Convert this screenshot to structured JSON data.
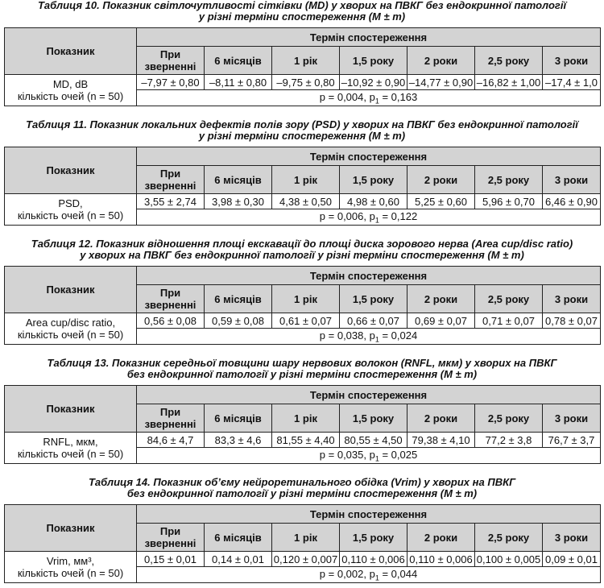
{
  "header": {
    "indicator_label": "Показник",
    "period_label": "Термін спостереження",
    "periods": [
      "При зверненні",
      "6 місяців",
      "1 рік",
      "1,5 року",
      "2 роки",
      "2,5 року",
      "3 роки"
    ]
  },
  "tables": [
    {
      "title_line1": "Таблиця 10. Показник світлочутливості сітківки (MD) у хворих на ПВКГ без ендокринної патології",
      "title_line2": "у різні терміни спостереження (M ± m)",
      "label_line1": "MD, dB",
      "label_line2": "кількість очей (n = 50)",
      "values": [
        "–7,97 ± 0,80",
        "–8,11 ± 0,80",
        "–9,75 ± 0,80",
        "–10,92 ± 0,90",
        "–14,77 ± 0,90",
        "–16,82 ± 1,00",
        "–17,4 ± 1,0"
      ],
      "p_main": "p = 0,004, p",
      "p_sub": "1",
      "p_tail": " = 0,163"
    },
    {
      "title_line1": "Таблиця 11. Показник локальних дефектів полів зору (PSD) у хворих на ПВКГ без ендокринної патології",
      "title_line2": "у різні терміни спостереження (M ± m)",
      "label_line1": "PSD,",
      "label_line2": "кількість очей (n = 50)",
      "values": [
        "3,55 ± 2,74",
        "3,98 ± 0,30",
        "4,38 ± 0,50",
        "4,98 ± 0,60",
        "5,25 ± 0,60",
        "5,96 ± 0,70",
        "6,46 ± 0,90"
      ],
      "p_main": "p = 0,006, p",
      "p_sub": "1",
      "p_tail": " = 0,122"
    },
    {
      "title_line1": "Таблиця 12. Показник відношення площі екскавації до площі диска зорового нерва (Area cup/disc ratio)",
      "title_line2": "у хворих на ПВКГ без ендокринної патології у різні терміни спостереження (M ± m)",
      "label_line1": "Area cup/disc ratio,",
      "label_line2": "кількість очей (n = 50)",
      "values": [
        "0,56 ± 0,08",
        "0,59 ± 0,08",
        "0,61 ± 0,07",
        "0,66 ± 0,07",
        "0,69 ± 0,07",
        "0,71 ± 0,07",
        "0,78 ± 0,07"
      ],
      "p_main": "p = 0,038, p",
      "p_sub": "1",
      "p_tail": " = 0,024"
    },
    {
      "title_line1": "Таблиця 13. Показник середньої товщини шару нервових волокон (RNFL, мкм) у хворих на ПВКГ",
      "title_line2": "без ендокринної патології у різні терміни спостереження (M ± m)",
      "label_line1": "RNFL, мкм,",
      "label_line2": "кількість очей (n = 50)",
      "values": [
        "84,6 ± 4,7",
        "83,3 ± 4,6",
        "81,55 ± 4,40",
        "80,55 ± 4,50",
        "79,38 ± 4,10",
        "77,2 ± 3,8",
        "76,7 ± 3,7"
      ],
      "p_main": "p = 0,035, p",
      "p_sub": "1",
      "p_tail": " = 0,025"
    },
    {
      "title_line1": "Таблиця 14. Показник об’єму нейроретинального обідка (Vrim) у хворих на ПВКГ",
      "title_line2": "без ендокринної патології у різні терміни спостереження (M ± m)",
      "label_line1": "Vrim, мм³,",
      "label_line2": "кількість очей (n = 50)",
      "values": [
        "0,15 ± 0,01",
        "0,14 ± 0,01",
        "0,120 ± 0,007",
        "0,110 ± 0,006",
        "0,110 ± 0,006",
        "0,100 ± 0,005",
        "0,09 ± 0,01"
      ],
      "p_main": "p = 0,002, p",
      "p_sub": "1",
      "p_tail": " = 0,044"
    }
  ]
}
